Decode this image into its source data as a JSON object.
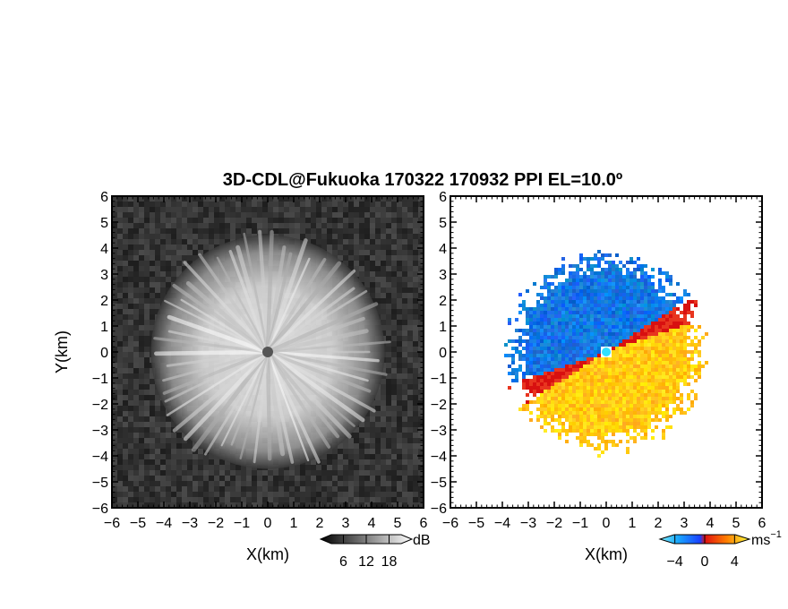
{
  "chart_data": [
    {
      "type": "heatmap",
      "title": "3D-CDL@Fukuoka 170322 170932 PPI EL=10.0º",
      "field": "backscatter intensity",
      "xlabel": "X(km)",
      "ylabel": "Y(km)",
      "xlim": [
        -6,
        6
      ],
      "ylim": [
        -6,
        6
      ],
      "xticks": [
        "−6",
        "−5",
        "−4",
        "−3",
        "−2",
        "−1",
        "0",
        "1",
        "2",
        "3",
        "4",
        "5",
        "6"
      ],
      "yticks": [
        "6",
        "5",
        "4",
        "3",
        "2",
        "1",
        "0",
        "−1",
        "−2",
        "−3",
        "−4",
        "−5",
        "−6"
      ],
      "echo_radius_km": 4.5,
      "colorbar": {
        "label": "dB",
        "ticks": [
          "6",
          "12",
          "18"
        ],
        "range": [
          0,
          24
        ],
        "colormap": "grayscale"
      },
      "colors": {
        "background": "#2a2a2a",
        "echo": "#f2f2f2"
      }
    },
    {
      "type": "heatmap",
      "field": "Doppler velocity",
      "xlabel": "X(km)",
      "xlim": [
        -6,
        6
      ],
      "ylim": [
        -6,
        6
      ],
      "xticks": [
        "−6",
        "−5",
        "−4",
        "−3",
        "−2",
        "−1",
        "0",
        "1",
        "2",
        "3",
        "4",
        "5",
        "6"
      ],
      "yticks": [
        "6",
        "5",
        "4",
        "3",
        "2",
        "1",
        "0",
        "−1",
        "−2",
        "−3",
        "−4",
        "−5",
        "−6"
      ],
      "echo_radius_km": 3.6,
      "colorbar": {
        "label": "ms",
        "label_sup": "−1",
        "ticks": [
          "−4",
          "0",
          "4"
        ],
        "range": [
          -6,
          6
        ],
        "colormap": "blue-red-yellow"
      },
      "colors": {
        "negative": "#1a6fff",
        "zero": "#e8351f",
        "positive": "#ffd200"
      }
    }
  ]
}
